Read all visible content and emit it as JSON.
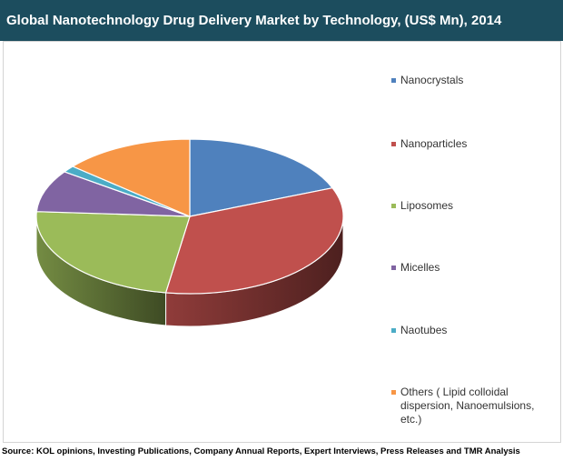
{
  "title": "Global Nanotechnology Drug Delivery Market by Technology, (US$ Mn), 2014",
  "source": "Source: KOL opinions, Investing Publications, Company Annual Reports, Expert Interviews, Press Releases and TMR Analysis",
  "chart_data": {
    "type": "pie",
    "style": "3d",
    "title": "Global Nanotechnology Drug Delivery Market by Technology, (US$ Mn), 2014",
    "legend_position": "right",
    "categories": [
      "Nanocrystals",
      "Nanoparticles",
      "Liposomes",
      "Micelles",
      "Naotubes",
      "Others ( Lipid colloidal dispersion, Nanoemulsions, etc.)"
    ],
    "values": [
      19.0,
      33.5,
      23.5,
      8.8,
      1.4,
      13.8
    ],
    "unit": "%",
    "colors": [
      "#4f81bd",
      "#c0504d",
      "#9bbb59",
      "#8064a2",
      "#4bacc6",
      "#f79646"
    ],
    "legend": [
      {
        "label": "Nanocrystals",
        "color": "#4f81bd"
      },
      {
        "label": "Nanoparticles",
        "color": "#c0504d"
      },
      {
        "label": "Liposomes",
        "color": "#9bbb59"
      },
      {
        "label": "Micelles",
        "color": "#8064a2"
      },
      {
        "label": "Naotubes",
        "color": "#4bacc6"
      },
      {
        "label": "Others ( Lipid colloidal\ndispersion, Nanoemulsions,\netc.)",
        "color": "#f79646"
      }
    ]
  }
}
